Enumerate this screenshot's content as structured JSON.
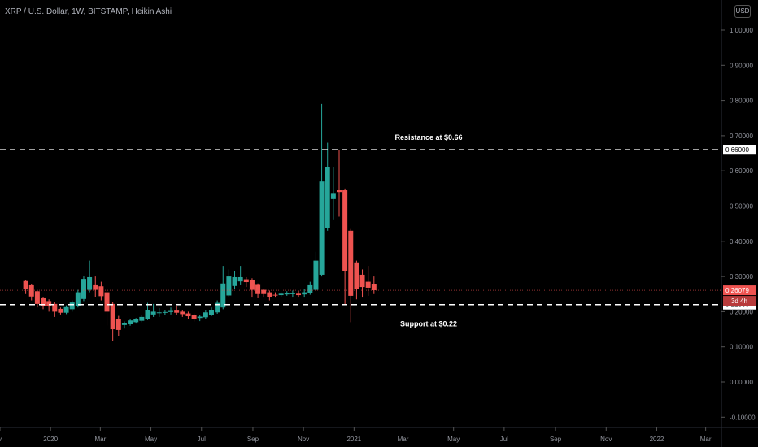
{
  "header": {
    "title": "XRP / U.S. Dollar, 1W, BITSTAMP, Heikin Ashi",
    "currency_button": "USD"
  },
  "colors": {
    "background": "#000000",
    "up": "#26a69a",
    "down": "#ef5350",
    "text": "#b2b5be",
    "lines": "#ffffff"
  },
  "chart_data": {
    "type": "candlestick",
    "style": "Heikin Ashi",
    "symbol": "XRP / U.S. Dollar",
    "interval": "1W",
    "exchange": "BITSTAMP",
    "ylim": [
      -0.12,
      1.05
    ],
    "y_ticks": [
      "1.00000",
      "0.90000",
      "0.80000",
      "0.70000",
      "0.60000",
      "0.50000",
      "0.40000",
      "0.30000",
      "0.20000",
      "0.10000",
      "0.00000",
      "-0.10000"
    ],
    "y_tick_values": [
      1.0,
      0.9,
      0.8,
      0.7,
      0.6,
      0.5,
      0.4,
      0.3,
      0.2,
      0.1,
      0.0,
      -0.1
    ],
    "x_ticks": [
      "v",
      "2020",
      "Mar",
      "May",
      "Jul",
      "Sep",
      "Nov",
      "2021",
      "Mar",
      "May",
      "Jul",
      "Sep",
      "Nov",
      "2022",
      "Mar"
    ],
    "x_tick_dates": [
      "2019-11-01",
      "2020-01-01",
      "2020-03-01",
      "2020-05-01",
      "2020-07-01",
      "2020-09-01",
      "2020-11-01",
      "2021-01-01",
      "2021-03-01",
      "2021-05-01",
      "2021-07-01",
      "2021-09-01",
      "2021-11-01",
      "2022-01-01",
      "2022-03-01"
    ],
    "x_range": [
      "2019-11-01",
      "2022-03-20"
    ],
    "candles": [
      {
        "date": "2019-12-02",
        "open": 0.287,
        "high": 0.29,
        "low": 0.25,
        "close": 0.265,
        "dir": "down"
      },
      {
        "date": "2019-12-09",
        "open": 0.275,
        "high": 0.278,
        "low": 0.232,
        "close": 0.243,
        "dir": "down"
      },
      {
        "date": "2019-12-16",
        "open": 0.258,
        "high": 0.262,
        "low": 0.212,
        "close": 0.222,
        "dir": "down"
      },
      {
        "date": "2019-12-23",
        "open": 0.238,
        "high": 0.242,
        "low": 0.207,
        "close": 0.216,
        "dir": "down"
      },
      {
        "date": "2019-12-30",
        "open": 0.23,
        "high": 0.235,
        "low": 0.2,
        "close": 0.215,
        "dir": "down"
      },
      {
        "date": "2020-01-06",
        "open": 0.222,
        "high": 0.228,
        "low": 0.185,
        "close": 0.2,
        "dir": "down"
      },
      {
        "date": "2020-01-13",
        "open": 0.208,
        "high": 0.212,
        "low": 0.192,
        "close": 0.197,
        "dir": "down"
      },
      {
        "date": "2020-01-20",
        "open": 0.197,
        "high": 0.218,
        "low": 0.193,
        "close": 0.213,
        "dir": "up"
      },
      {
        "date": "2020-01-27",
        "open": 0.207,
        "high": 0.232,
        "low": 0.2,
        "close": 0.226,
        "dir": "up"
      },
      {
        "date": "2020-02-03",
        "open": 0.217,
        "high": 0.262,
        "low": 0.212,
        "close": 0.255,
        "dir": "up"
      },
      {
        "date": "2020-02-10",
        "open": 0.236,
        "high": 0.3,
        "low": 0.23,
        "close": 0.293,
        "dir": "up"
      },
      {
        "date": "2020-02-17",
        "open": 0.262,
        "high": 0.345,
        "low": 0.255,
        "close": 0.298,
        "dir": "up"
      },
      {
        "date": "2020-02-24",
        "open": 0.275,
        "high": 0.3,
        "low": 0.242,
        "close": 0.262,
        "dir": "down"
      },
      {
        "date": "2020-03-02",
        "open": 0.272,
        "high": 0.285,
        "low": 0.232,
        "close": 0.244,
        "dir": "down"
      },
      {
        "date": "2020-03-09",
        "open": 0.255,
        "high": 0.262,
        "low": 0.16,
        "close": 0.2,
        "dir": "down"
      },
      {
        "date": "2020-03-16",
        "open": 0.222,
        "high": 0.228,
        "low": 0.117,
        "close": 0.15,
        "dir": "down"
      },
      {
        "date": "2020-03-23",
        "open": 0.18,
        "high": 0.188,
        "low": 0.13,
        "close": 0.148,
        "dir": "down"
      },
      {
        "date": "2020-03-30",
        "open": 0.162,
        "high": 0.172,
        "low": 0.152,
        "close": 0.168,
        "dir": "up"
      },
      {
        "date": "2020-04-06",
        "open": 0.164,
        "high": 0.18,
        "low": 0.16,
        "close": 0.175,
        "dir": "up"
      },
      {
        "date": "2020-04-13",
        "open": 0.17,
        "high": 0.182,
        "low": 0.166,
        "close": 0.178,
        "dir": "up"
      },
      {
        "date": "2020-04-20",
        "open": 0.174,
        "high": 0.19,
        "low": 0.17,
        "close": 0.185,
        "dir": "up"
      },
      {
        "date": "2020-04-27",
        "open": 0.18,
        "high": 0.225,
        "low": 0.176,
        "close": 0.205,
        "dir": "up"
      },
      {
        "date": "2020-05-04",
        "open": 0.192,
        "high": 0.222,
        "low": 0.185,
        "close": 0.2,
        "dir": "up"
      },
      {
        "date": "2020-05-11",
        "open": 0.197,
        "high": 0.21,
        "low": 0.185,
        "close": 0.198,
        "dir": "up"
      },
      {
        "date": "2020-05-18",
        "open": 0.198,
        "high": 0.205,
        "low": 0.19,
        "close": 0.199,
        "dir": "up"
      },
      {
        "date": "2020-05-25",
        "open": 0.199,
        "high": 0.212,
        "low": 0.192,
        "close": 0.202,
        "dir": "up"
      },
      {
        "date": "2020-06-01",
        "open": 0.203,
        "high": 0.215,
        "low": 0.19,
        "close": 0.197,
        "dir": "down"
      },
      {
        "date": "2020-06-08",
        "open": 0.2,
        "high": 0.205,
        "low": 0.185,
        "close": 0.193,
        "dir": "down"
      },
      {
        "date": "2020-06-15",
        "open": 0.195,
        "high": 0.2,
        "low": 0.18,
        "close": 0.187,
        "dir": "down"
      },
      {
        "date": "2020-06-22",
        "open": 0.19,
        "high": 0.195,
        "low": 0.172,
        "close": 0.18,
        "dir": "down"
      },
      {
        "date": "2020-06-29",
        "open": 0.182,
        "high": 0.19,
        "low": 0.173,
        "close": 0.186,
        "dir": "up"
      },
      {
        "date": "2020-07-06",
        "open": 0.184,
        "high": 0.205,
        "low": 0.18,
        "close": 0.198,
        "dir": "up"
      },
      {
        "date": "2020-07-13",
        "open": 0.19,
        "high": 0.212,
        "low": 0.187,
        "close": 0.205,
        "dir": "up"
      },
      {
        "date": "2020-07-20",
        "open": 0.198,
        "high": 0.232,
        "low": 0.194,
        "close": 0.225,
        "dir": "up"
      },
      {
        "date": "2020-07-27",
        "open": 0.212,
        "high": 0.33,
        "low": 0.207,
        "close": 0.28,
        "dir": "up"
      },
      {
        "date": "2020-08-03",
        "open": 0.246,
        "high": 0.32,
        "low": 0.24,
        "close": 0.3,
        "dir": "up"
      },
      {
        "date": "2020-08-10",
        "open": 0.273,
        "high": 0.315,
        "low": 0.265,
        "close": 0.298,
        "dir": "up"
      },
      {
        "date": "2020-08-17",
        "open": 0.286,
        "high": 0.33,
        "low": 0.275,
        "close": 0.298,
        "dir": "up"
      },
      {
        "date": "2020-08-24",
        "open": 0.292,
        "high": 0.298,
        "low": 0.27,
        "close": 0.284,
        "dir": "down"
      },
      {
        "date": "2020-08-31",
        "open": 0.29,
        "high": 0.295,
        "low": 0.24,
        "close": 0.262,
        "dir": "down"
      },
      {
        "date": "2020-09-07",
        "open": 0.276,
        "high": 0.28,
        "low": 0.238,
        "close": 0.25,
        "dir": "down"
      },
      {
        "date": "2020-09-14",
        "open": 0.262,
        "high": 0.265,
        "low": 0.24,
        "close": 0.25,
        "dir": "down"
      },
      {
        "date": "2020-09-21",
        "open": 0.255,
        "high": 0.26,
        "low": 0.232,
        "close": 0.242,
        "dir": "down"
      },
      {
        "date": "2020-09-28",
        "open": 0.248,
        "high": 0.255,
        "low": 0.24,
        "close": 0.246,
        "dir": "down"
      },
      {
        "date": "2020-10-05",
        "open": 0.247,
        "high": 0.255,
        "low": 0.242,
        "close": 0.251,
        "dir": "up"
      },
      {
        "date": "2020-10-12",
        "open": 0.249,
        "high": 0.258,
        "low": 0.245,
        "close": 0.253,
        "dir": "up"
      },
      {
        "date": "2020-10-19",
        "open": 0.251,
        "high": 0.26,
        "low": 0.24,
        "close": 0.252,
        "dir": "up"
      },
      {
        "date": "2020-10-26",
        "open": 0.251,
        "high": 0.26,
        "low": 0.24,
        "close": 0.247,
        "dir": "down"
      },
      {
        "date": "2020-11-02",
        "open": 0.249,
        "high": 0.265,
        "low": 0.24,
        "close": 0.255,
        "dir": "up"
      },
      {
        "date": "2020-11-09",
        "open": 0.252,
        "high": 0.285,
        "low": 0.248,
        "close": 0.275,
        "dir": "up"
      },
      {
        "date": "2020-11-16",
        "open": 0.262,
        "high": 0.37,
        "low": 0.258,
        "close": 0.345,
        "dir": "up"
      },
      {
        "date": "2020-11-23",
        "open": 0.305,
        "high": 0.79,
        "low": 0.3,
        "close": 0.57,
        "dir": "up"
      },
      {
        "date": "2020-11-30",
        "open": 0.437,
        "high": 0.68,
        "low": 0.43,
        "close": 0.61,
        "dir": "up"
      },
      {
        "date": "2020-12-07",
        "open": 0.52,
        "high": 0.61,
        "low": 0.46,
        "close": 0.535,
        "dir": "up"
      },
      {
        "date": "2020-12-14",
        "open": 0.545,
        "high": 0.66,
        "low": 0.47,
        "close": 0.54,
        "dir": "down"
      },
      {
        "date": "2020-12-21",
        "open": 0.545,
        "high": 0.55,
        "low": 0.22,
        "close": 0.315,
        "dir": "down"
      },
      {
        "date": "2020-12-28",
        "open": 0.43,
        "high": 0.435,
        "low": 0.17,
        "close": 0.245,
        "dir": "down"
      },
      {
        "date": "2021-01-04",
        "open": 0.34,
        "high": 0.345,
        "low": 0.235,
        "close": 0.265,
        "dir": "down"
      },
      {
        "date": "2021-01-11",
        "open": 0.305,
        "high": 0.32,
        "low": 0.24,
        "close": 0.27,
        "dir": "down"
      },
      {
        "date": "2021-01-18",
        "open": 0.285,
        "high": 0.33,
        "low": 0.245,
        "close": 0.268,
        "dir": "down"
      },
      {
        "date": "2021-01-25",
        "open": 0.279,
        "high": 0.3,
        "low": 0.25,
        "close": 0.261,
        "dir": "down"
      }
    ],
    "horizontal_lines": [
      {
        "value": 0.66,
        "label": "Resistance at $0.66",
        "axis_label": "0.66000"
      },
      {
        "value": 0.22,
        "label": "Support at $0.22",
        "axis_label": "0.22000"
      }
    ],
    "last_price": {
      "value": 0.26079,
      "label": "0.26079",
      "countdown": "3d 4h"
    }
  }
}
